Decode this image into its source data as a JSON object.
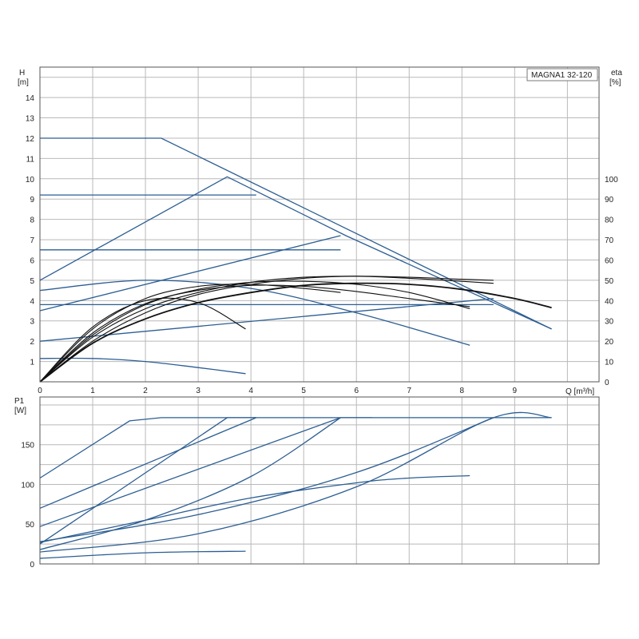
{
  "chart_data": [
    {
      "type": "line",
      "title": "MAGNA1 32-120",
      "ylabel": "H",
      "yunit": "[m]",
      "y2label": "eta",
      "y2unit": "[%]",
      "xlabel": "Q [m³/h]",
      "xlim": [
        0,
        10.6
      ],
      "ylim": [
        0,
        15.5
      ],
      "y2lim": [
        0,
        100
      ],
      "grid": true,
      "x_ticks": [
        "0",
        "1",
        "2",
        "3",
        "4",
        "5",
        "6",
        "7",
        "8",
        "9"
      ],
      "y_ticks": [
        "1",
        "2",
        "3",
        "4",
        "5",
        "6",
        "7",
        "8",
        "9",
        "10",
        "11",
        "12",
        "13",
        "14"
      ],
      "y2_ticks": [
        "0",
        "10",
        "20",
        "30",
        "40",
        "50",
        "60",
        "70",
        "80",
        "90",
        "100"
      ],
      "colors": {
        "qh": "#2c5e93",
        "eta": "#111111"
      },
      "qh_series": [
        {
          "x": [
            0,
            2.3,
            9.7
          ],
          "y": [
            12,
            12,
            2.6
          ]
        },
        {
          "x": [
            0,
            4.1
          ],
          "y": [
            9.2,
            9.2
          ]
        },
        {
          "x": [
            0,
            3.55,
            5.8,
            9.7
          ],
          "y": [
            5,
            10.1,
            7.2,
            2.6
          ]
        },
        {
          "x": [
            0,
            5.7
          ],
          "y": [
            6.5,
            6.5
          ]
        },
        {
          "x": [
            0,
            5.7
          ],
          "y": [
            3.5,
            7.2
          ]
        },
        {
          "x": [
            0,
            8.6
          ],
          "y": [
            3.8,
            3.8
          ]
        },
        {
          "x": [
            0,
            8.6
          ],
          "y": [
            2.0,
            4.1
          ]
        },
        {
          "x": [
            0,
            2,
            4,
            6,
            8.15
          ],
          "y": [
            4.5,
            5.0,
            4.6,
            3.4,
            1.8
          ]
        },
        {
          "x": [
            0,
            1,
            2,
            3,
            3.9
          ],
          "y": [
            1.15,
            1.15,
            1.0,
            0.7,
            0.4
          ]
        }
      ],
      "eta_series": [
        {
          "x": [
            0,
            1,
            2,
            3,
            4,
            5,
            6,
            7,
            8,
            9,
            9.7
          ],
          "y": [
            0,
            19,
            31,
            39,
            44,
            47.5,
            48.5,
            48,
            45.5,
            41,
            36.5
          ]
        },
        {
          "x": [
            0,
            1,
            2,
            3,
            4,
            5,
            6,
            7,
            8,
            8.6
          ],
          "y": [
            0,
            20,
            34,
            43,
            48,
            51,
            52,
            51.5,
            50.5,
            50
          ]
        },
        {
          "x": [
            0,
            1,
            2,
            3,
            4,
            5,
            6,
            7,
            8,
            8.6
          ],
          "y": [
            0,
            22,
            36,
            44,
            49,
            51.5,
            52,
            51,
            49.5,
            48.5
          ]
        },
        {
          "x": [
            0,
            1,
            2,
            3,
            4,
            5,
            6,
            7,
            8.15
          ],
          "y": [
            0,
            23,
            38,
            45.5,
            49,
            49.5,
            48,
            44,
            36
          ]
        },
        {
          "x": [
            0,
            1,
            2,
            3,
            4,
            5,
            6,
            7,
            8.15
          ],
          "y": [
            0,
            24,
            38.5,
            45,
            47.5,
            47,
            44.5,
            41,
            37
          ]
        },
        {
          "x": [
            0,
            1,
            2,
            3,
            4,
            5,
            5.7
          ],
          "y": [
            0,
            26,
            41,
            47,
            48,
            46,
            44
          ]
        },
        {
          "x": [
            0,
            1,
            2,
            3,
            3.9
          ],
          "y": [
            0,
            27,
            40,
            39,
            26
          ]
        }
      ]
    },
    {
      "type": "line",
      "ylabel": "P1",
      "yunit": "[W]",
      "xlim": [
        0,
        10.6
      ],
      "ylim": [
        0,
        210
      ],
      "grid": true,
      "y_ticks": [
        "0",
        "50",
        "100",
        "150"
      ],
      "colors": {
        "p1": "#2c5e93"
      },
      "series": [
        {
          "x": [
            0,
            1.7,
            2.3,
            9.7
          ],
          "y": [
            108,
            180,
            184,
            184
          ]
        },
        {
          "x": [
            0,
            4.1
          ],
          "y": [
            70,
            184
          ]
        },
        {
          "x": [
            0,
            3.55,
            4.1
          ],
          "y": [
            25,
            184,
            184
          ]
        },
        {
          "x": [
            0,
            5.7,
            6.3
          ],
          "y": [
            47,
            184,
            184
          ]
        },
        {
          "x": [
            0,
            2,
            4,
            5.7
          ],
          "y": [
            18,
            55,
            110,
            184
          ]
        },
        {
          "x": [
            0,
            3,
            6,
            8.6
          ],
          "y": [
            28,
            62,
            115,
            184
          ]
        },
        {
          "x": [
            0,
            3,
            6,
            8.6,
            9.7
          ],
          "y": [
            15,
            38,
            97,
            184,
            184
          ]
        },
        {
          "x": [
            0,
            2,
            4,
            6,
            7,
            8.15
          ],
          "y": [
            27,
            55,
            83,
            102,
            108,
            111
          ]
        },
        {
          "x": [
            0,
            2,
            3.9
          ],
          "y": [
            7,
            14,
            16
          ]
        }
      ]
    }
  ]
}
